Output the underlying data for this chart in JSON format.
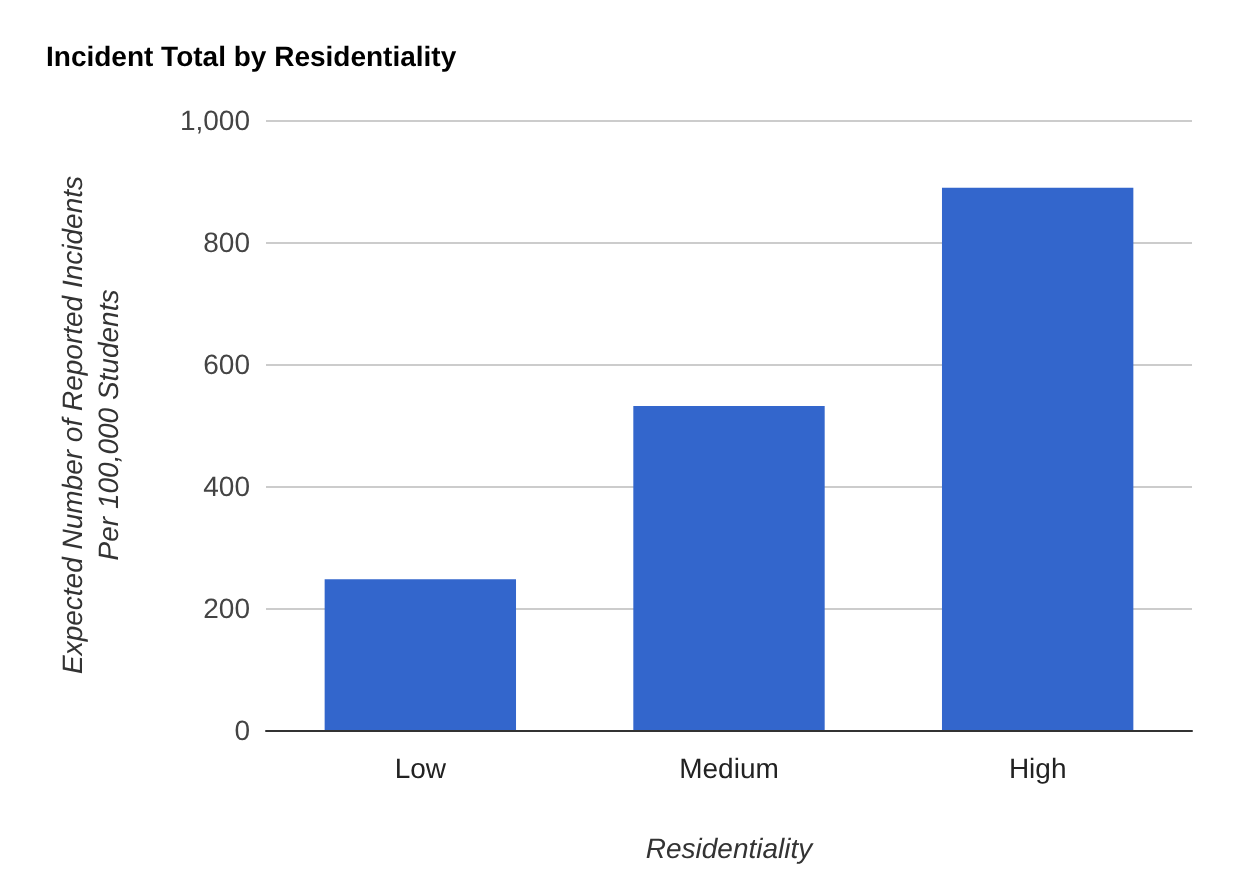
{
  "chart_data": {
    "type": "bar",
    "title": "Incident Total by Residentiality",
    "xlabel": "Residentiality",
    "ylabel": "Expected Number of Reported Incidents\nPer 100,000 Students",
    "categories": [
      "Low",
      "Medium",
      "High"
    ],
    "values": [
      247,
      531,
      889
    ],
    "color": "#3366cc",
    "ylim": [
      0,
      1000
    ],
    "yticks": [
      0,
      200,
      400,
      600,
      800,
      {
        "value": 1000,
        "label": "1,000"
      }
    ],
    "grid": "y"
  }
}
